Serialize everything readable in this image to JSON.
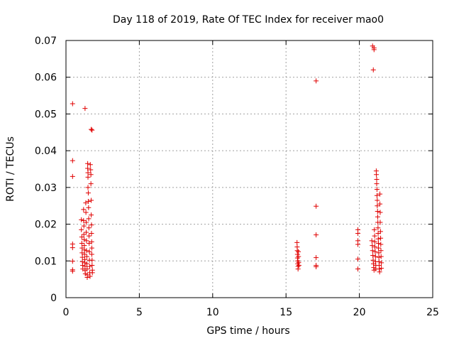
{
  "chart_data": {
    "type": "scatter",
    "title": "Day 118 of 2019, Rate Of TEC Index for receiver mao0",
    "xlabel": "GPS time / hours",
    "ylabel": "ROTI / TECUs",
    "xlim": [
      0,
      25
    ],
    "ylim": [
      0,
      0.07
    ],
    "xticks": [
      0,
      5,
      10,
      15,
      20,
      25
    ],
    "xtick_labels": [
      "0",
      "5",
      "10",
      "15",
      "20",
      "25"
    ],
    "yticks": [
      0,
      0.01,
      0.02,
      0.03,
      0.04,
      0.05,
      0.06,
      0.07
    ],
    "ytick_labels": [
      "0",
      "0.01",
      "0.02",
      "0.03",
      "0.04",
      "0.05",
      "0.06",
      "0.07"
    ],
    "grid": true,
    "marker": "+",
    "color": "#e00000",
    "series": [
      {
        "name": "ROTI",
        "points": [
          [
            0.45,
            0.0528
          ],
          [
            0.45,
            0.0373
          ],
          [
            0.45,
            0.033
          ],
          [
            0.45,
            0.0146
          ],
          [
            0.45,
            0.0136
          ],
          [
            0.45,
            0.0099
          ],
          [
            0.45,
            0.0076
          ],
          [
            0.45,
            0.0072
          ],
          [
            1.3,
            0.0515
          ],
          [
            1.72,
            0.0458
          ],
          [
            1.78,
            0.0456
          ],
          [
            1.05,
            0.0212
          ],
          [
            1.05,
            0.0185
          ],
          [
            1.08,
            0.0165
          ],
          [
            1.08,
            0.0148
          ],
          [
            1.1,
            0.0135
          ],
          [
            1.1,
            0.0122
          ],
          [
            1.12,
            0.011
          ],
          [
            1.12,
            0.0098
          ],
          [
            1.14,
            0.0088
          ],
          [
            1.15,
            0.0078
          ],
          [
            1.2,
            0.024
          ],
          [
            1.2,
            0.021
          ],
          [
            1.22,
            0.0195
          ],
          [
            1.22,
            0.0172
          ],
          [
            1.24,
            0.0158
          ],
          [
            1.25,
            0.0142
          ],
          [
            1.26,
            0.013
          ],
          [
            1.27,
            0.0118
          ],
          [
            1.28,
            0.0104
          ],
          [
            1.29,
            0.0095
          ],
          [
            1.3,
            0.0085
          ],
          [
            1.3,
            0.0074
          ],
          [
            1.32,
            0.0065
          ],
          [
            1.35,
            0.0258
          ],
          [
            1.36,
            0.0232
          ],
          [
            1.38,
            0.0205
          ],
          [
            1.38,
            0.0178
          ],
          [
            1.4,
            0.0155
          ],
          [
            1.4,
            0.0128
          ],
          [
            1.42,
            0.0112
          ],
          [
            1.42,
            0.0092
          ],
          [
            1.44,
            0.0078
          ],
          [
            1.45,
            0.0062
          ],
          [
            1.45,
            0.0055
          ],
          [
            1.48,
            0.0365
          ],
          [
            1.48,
            0.0352
          ],
          [
            1.5,
            0.034
          ],
          [
            1.5,
            0.0328
          ],
          [
            1.5,
            0.03
          ],
          [
            1.52,
            0.0285
          ],
          [
            1.52,
            0.0262
          ],
          [
            1.54,
            0.0245
          ],
          [
            1.55,
            0.0215
          ],
          [
            1.56,
            0.019
          ],
          [
            1.57,
            0.0168
          ],
          [
            1.58,
            0.0148
          ],
          [
            1.6,
            0.0125
          ],
          [
            1.6,
            0.0102
          ],
          [
            1.62,
            0.0085
          ],
          [
            1.62,
            0.0068
          ],
          [
            1.64,
            0.0058
          ],
          [
            1.66,
            0.0362
          ],
          [
            1.68,
            0.0348
          ],
          [
            1.7,
            0.0335
          ],
          [
            1.7,
            0.031
          ],
          [
            1.72,
            0.0265
          ],
          [
            1.72,
            0.0225
          ],
          [
            1.74,
            0.0198
          ],
          [
            1.74,
            0.0175
          ],
          [
            1.75,
            0.0152
          ],
          [
            1.76,
            0.0135
          ],
          [
            1.76,
            0.0118
          ],
          [
            1.78,
            0.0102
          ],
          [
            1.78,
            0.0088
          ],
          [
            1.8,
            0.0075
          ],
          [
            1.8,
            0.0068
          ],
          [
            15.75,
            0.015
          ],
          [
            15.76,
            0.0138
          ],
          [
            15.77,
            0.0128
          ],
          [
            15.78,
            0.0118
          ],
          [
            15.78,
            0.0108
          ],
          [
            15.8,
            0.01
          ],
          [
            15.8,
            0.0092
          ],
          [
            15.82,
            0.0085
          ],
          [
            15.82,
            0.0078
          ],
          [
            15.84,
            0.0125
          ],
          [
            15.85,
            0.0112
          ],
          [
            15.86,
            0.0096
          ],
          [
            15.88,
            0.0088
          ],
          [
            17.05,
            0.059
          ],
          [
            17.05,
            0.0249
          ],
          [
            17.05,
            0.0171
          ],
          [
            17.05,
            0.0109
          ],
          [
            17.05,
            0.0088
          ],
          [
            17.05,
            0.0084
          ],
          [
            19.9,
            0.0185
          ],
          [
            19.9,
            0.0175
          ],
          [
            19.9,
            0.0155
          ],
          [
            19.9,
            0.0145
          ],
          [
            19.9,
            0.0105
          ],
          [
            19.9,
            0.0078
          ],
          [
            20.9,
            0.0685
          ],
          [
            21.0,
            0.068
          ],
          [
            21.0,
            0.0675
          ],
          [
            20.95,
            0.062
          ],
          [
            20.85,
            0.0155
          ],
          [
            20.88,
            0.0142
          ],
          [
            20.9,
            0.0128
          ],
          [
            20.92,
            0.0115
          ],
          [
            20.94,
            0.0102
          ],
          [
            20.96,
            0.0092
          ],
          [
            20.98,
            0.0082
          ],
          [
            21.0,
            0.0075
          ],
          [
            21.02,
            0.0185
          ],
          [
            21.04,
            0.0168
          ],
          [
            21.05,
            0.0152
          ],
          [
            21.06,
            0.0138
          ],
          [
            21.08,
            0.0125
          ],
          [
            21.1,
            0.0112
          ],
          [
            21.1,
            0.0098
          ],
          [
            21.12,
            0.0088
          ],
          [
            21.12,
            0.0078
          ],
          [
            21.15,
            0.0345
          ],
          [
            21.16,
            0.0335
          ],
          [
            21.18,
            0.0322
          ],
          [
            21.18,
            0.031
          ],
          [
            21.2,
            0.0295
          ],
          [
            21.2,
            0.0278
          ],
          [
            21.22,
            0.0265
          ],
          [
            21.22,
            0.025
          ],
          [
            21.24,
            0.0235
          ],
          [
            21.25,
            0.022
          ],
          [
            21.26,
            0.0205
          ],
          [
            21.27,
            0.019
          ],
          [
            21.28,
            0.0175
          ],
          [
            21.29,
            0.016
          ],
          [
            21.3,
            0.0148
          ],
          [
            21.3,
            0.0135
          ],
          [
            21.32,
            0.0122
          ],
          [
            21.33,
            0.011
          ],
          [
            21.34,
            0.0098
          ],
          [
            21.35,
            0.0088
          ],
          [
            21.36,
            0.0078
          ],
          [
            21.38,
            0.007
          ],
          [
            21.4,
            0.0282
          ],
          [
            21.4,
            0.0255
          ],
          [
            21.42,
            0.0232
          ],
          [
            21.42,
            0.0205
          ],
          [
            21.44,
            0.018
          ],
          [
            21.45,
            0.0162
          ],
          [
            21.46,
            0.0145
          ],
          [
            21.47,
            0.0128
          ],
          [
            21.48,
            0.0112
          ],
          [
            21.5,
            0.0095
          ],
          [
            21.5,
            0.008
          ]
        ]
      }
    ]
  }
}
